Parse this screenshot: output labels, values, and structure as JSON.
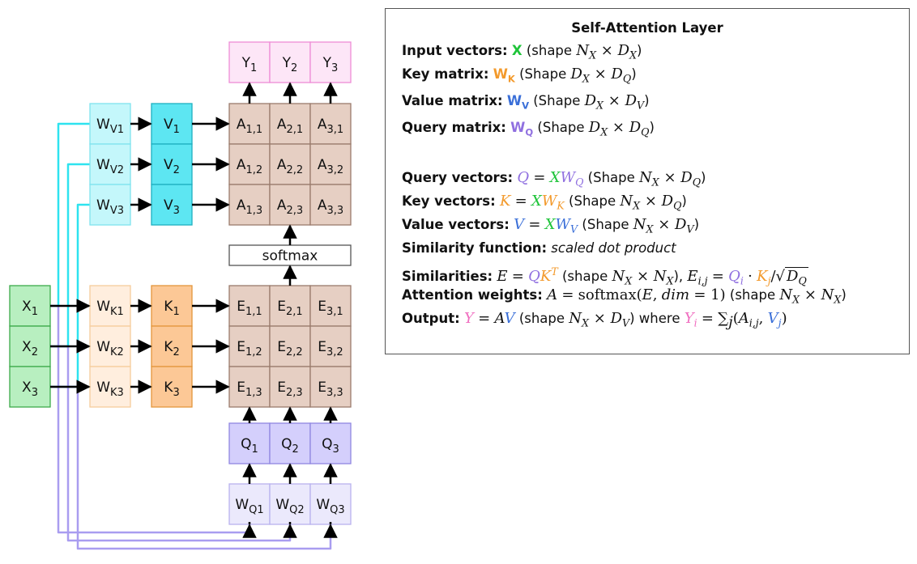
{
  "diagram": {
    "inputs": [
      {
        "base": "X",
        "sub": "1"
      },
      {
        "base": "X",
        "sub": "2"
      },
      {
        "base": "X",
        "sub": "3"
      }
    ],
    "wv": [
      {
        "base": "W",
        "sub": "V1"
      },
      {
        "base": "W",
        "sub": "V2"
      },
      {
        "base": "W",
        "sub": "V3"
      }
    ],
    "v": [
      {
        "base": "V",
        "sub": "1"
      },
      {
        "base": "V",
        "sub": "2"
      },
      {
        "base": "V",
        "sub": "3"
      }
    ],
    "wk": [
      {
        "base": "W",
        "sub": "K1"
      },
      {
        "base": "W",
        "sub": "K2"
      },
      {
        "base": "W",
        "sub": "K3"
      }
    ],
    "k": [
      {
        "base": "K",
        "sub": "1"
      },
      {
        "base": "K",
        "sub": "2"
      },
      {
        "base": "K",
        "sub": "3"
      }
    ],
    "y": [
      {
        "base": "Y",
        "sub": "1"
      },
      {
        "base": "Y",
        "sub": "2"
      },
      {
        "base": "Y",
        "sub": "3"
      }
    ],
    "a": [
      [
        {
          "base": "A",
          "sub": "1,1"
        },
        {
          "base": "A",
          "sub": "2,1"
        },
        {
          "base": "A",
          "sub": "3,1"
        }
      ],
      [
        {
          "base": "A",
          "sub": "1,2"
        },
        {
          "base": "A",
          "sub": "2,2"
        },
        {
          "base": "A",
          "sub": "3,2"
        }
      ],
      [
        {
          "base": "A",
          "sub": "1,3"
        },
        {
          "base": "A",
          "sub": "2,3"
        },
        {
          "base": "A",
          "sub": "3,3"
        }
      ]
    ],
    "softmax": "softmax",
    "e": [
      [
        {
          "base": "E",
          "sub": "1,1"
        },
        {
          "base": "E",
          "sub": "2,1"
        },
        {
          "base": "E",
          "sub": "3,1"
        }
      ],
      [
        {
          "base": "E",
          "sub": "1,2"
        },
        {
          "base": "E",
          "sub": "2,2"
        },
        {
          "base": "E",
          "sub": "3,2"
        }
      ],
      [
        {
          "base": "E",
          "sub": "1,3"
        },
        {
          "base": "E",
          "sub": "2,3"
        },
        {
          "base": "E",
          "sub": "3,3"
        }
      ]
    ],
    "q": [
      {
        "base": "Q",
        "sub": "1"
      },
      {
        "base": "Q",
        "sub": "2"
      },
      {
        "base": "Q",
        "sub": "3"
      }
    ],
    "wq": [
      {
        "base": "W",
        "sub": "Q1"
      },
      {
        "base": "W",
        "sub": "Q2"
      },
      {
        "base": "W",
        "sub": "Q3"
      }
    ],
    "colors": {
      "x_fill": "#b8efc0",
      "x_stroke": "#3caa4a",
      "wv_fill": "#c4f7fb",
      "wv_stroke": "#7fe3ee",
      "v_fill": "#5de6f2",
      "v_stroke": "#1fb0c0",
      "wk_fill": "#ffeede",
      "wk_stroke": "#f6cd9c",
      "k_fill": "#fcc896",
      "k_stroke": "#e3963c",
      "y_fill": "#fde6f7",
      "y_stroke": "#ee8cd6",
      "ae_fill": "#e6cfc3",
      "ae_stroke": "#9a7b6c",
      "q_fill": "#d4cffc",
      "q_stroke": "#8f86e0",
      "wq_fill": "#ebe9fc",
      "wq_stroke": "#b9b2ee",
      "line_cyan": "#2ee3ef",
      "line_purple": "#a99df0",
      "arrow": "#000000"
    }
  },
  "panel": {
    "title": "Self-Attention Layer",
    "input_label": "Input vectors",
    "input_var": "X",
    "key_matrix_label": "Key matrix",
    "key_matrix_var": "W",
    "key_matrix_sub": "K",
    "value_matrix_label": "Value matrix",
    "value_matrix_var": "W",
    "value_matrix_sub": "V",
    "query_matrix_label": "Query matrix",
    "query_matrix_var": "W",
    "query_matrix_sub": "Q",
    "shape_lower": "(shape",
    "shape_upper": "(Shape",
    "query_vectors_label": "Query vectors",
    "key_vectors_label": "Key vectors",
    "value_vectors_label": "Value vectors",
    "similarity_fn_label": "Similarity function",
    "similarity_fn_value": "scaled dot product",
    "similarities_label": "Similarities",
    "attention_label": "Attention weights",
    "output_label": "Output",
    "where": "where",
    "softmax_fn": "softmax",
    "dim": "dim"
  }
}
